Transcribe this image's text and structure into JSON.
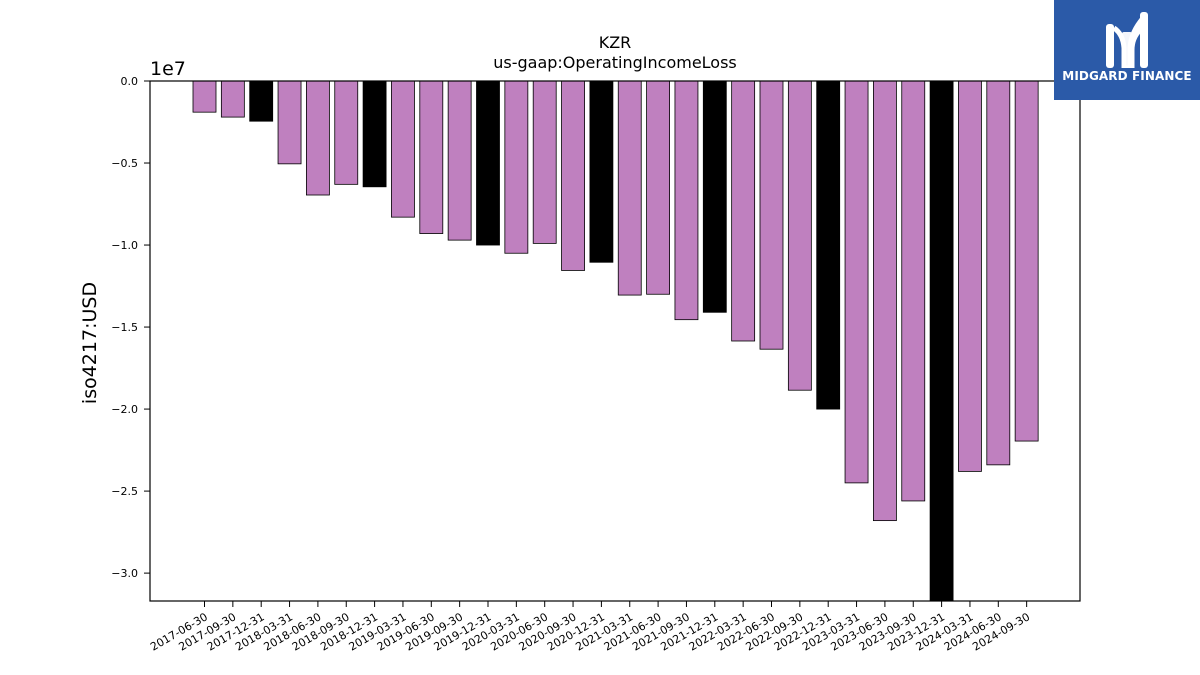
{
  "brand": {
    "name": "MIDGARD FINANCE",
    "logo_icon": "midgard-m-logo-icon",
    "background": "#2b5aa8"
  },
  "chart_data": {
    "type": "bar",
    "title": "KZR",
    "subtitle": "us-gaap:OperatingIncomeLoss",
    "ylabel": "iso4217:USD",
    "xlabel": "",
    "scale_label": "1e7",
    "scale": 10000000,
    "ylim": [
      -31700000,
      0
    ],
    "yticks": [
      0.0,
      -0.5,
      -1.0,
      -1.5,
      -2.0,
      -2.5,
      -3.0
    ],
    "ytick_labels": [
      "0.0",
      "−0.5",
      "−1.0",
      "−1.5",
      "−2.0",
      "−2.5",
      "−3.0"
    ],
    "grid": false,
    "legend": "none",
    "colors": {
      "quarter": "#bf80bf",
      "year_end": "#000000",
      "edge": "#000000"
    },
    "categories": [
      "2017-06-30",
      "2017-09-30",
      "2017-12-31",
      "2018-03-31",
      "2018-06-30",
      "2018-09-30",
      "2018-12-31",
      "2019-03-31",
      "2019-06-30",
      "2019-09-30",
      "2019-12-31",
      "2020-03-31",
      "2020-06-30",
      "2020-09-30",
      "2020-12-31",
      "2021-03-31",
      "2021-06-30",
      "2021-09-30",
      "2021-12-31",
      "2022-03-31",
      "2022-06-30",
      "2022-09-30",
      "2022-12-31",
      "2023-03-31",
      "2023-06-30",
      "2023-09-30",
      "2023-12-31",
      "2024-03-31",
      "2024-06-30",
      "2024-09-30"
    ],
    "values": [
      -1900000,
      -2200000,
      -2450000,
      -5050000,
      -6950000,
      -6300000,
      -6450000,
      -8300000,
      -9300000,
      -9700000,
      -10000000,
      -10500000,
      -9900000,
      -11550000,
      -11050000,
      -13050000,
      -13000000,
      -14550000,
      -14100000,
      -15850000,
      -16350000,
      -18850000,
      -20000000,
      -24500000,
      -26800000,
      -25600000,
      -31700000,
      -23800000,
      -23400000,
      -21950000
    ],
    "year_end": [
      false,
      false,
      true,
      false,
      false,
      false,
      true,
      false,
      false,
      false,
      true,
      false,
      false,
      false,
      true,
      false,
      false,
      false,
      true,
      false,
      false,
      false,
      true,
      false,
      false,
      false,
      true,
      false,
      false,
      false
    ]
  }
}
